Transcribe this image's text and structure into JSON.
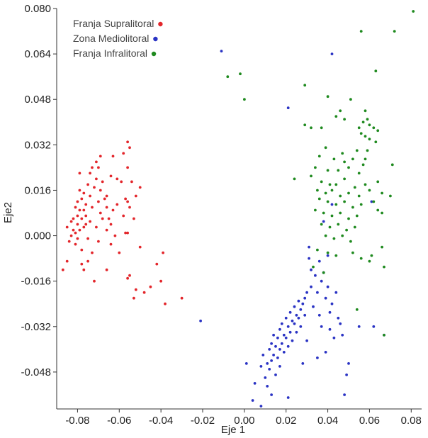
{
  "chart_data": {
    "type": "scatter",
    "title": "",
    "xlabel": "Eje 1",
    "ylabel": "Eje2",
    "xlim": [
      -0.09,
      0.085
    ],
    "ylim": [
      -0.061,
      0.08
    ],
    "xticks": [
      -0.08,
      -0.06,
      -0.04,
      -0.02,
      0.0,
      0.02,
      0.04,
      0.06,
      0.08
    ],
    "xtick_labels": [
      "-0.08",
      "-0.06",
      "-0.04",
      "-0.02",
      "0.00",
      "0.02",
      "0.04",
      "0.06",
      "0.08"
    ],
    "yticks": [
      0.08,
      0.064,
      0.048,
      0.032,
      0.016,
      0.0,
      -0.016,
      -0.032,
      -0.048
    ],
    "ytick_labels": [
      "0.080",
      "0.064",
      "0.048",
      "0.032",
      "0.016",
      "0.000",
      "-0.016",
      "-0.032",
      "-0.048"
    ],
    "grid": false,
    "legend_position": "top-left",
    "series": [
      {
        "name": "Franja Supralitoral",
        "color": "#e3262b",
        "points": [
          [
            -0.087,
            -0.012
          ],
          [
            -0.085,
            -0.009
          ],
          [
            -0.085,
            0.003
          ],
          [
            -0.084,
            -0.002
          ],
          [
            -0.083,
            0.0
          ],
          [
            -0.083,
            0.005
          ],
          [
            -0.082,
            0.002
          ],
          [
            -0.082,
            0.006
          ],
          [
            -0.081,
            0.01
          ],
          [
            -0.081,
            0.001
          ],
          [
            -0.081,
            -0.003
          ],
          [
            -0.08,
            0.007
          ],
          [
            -0.08,
            0.012
          ],
          [
            -0.08,
            0.004
          ],
          [
            -0.08,
            -0.001
          ],
          [
            -0.079,
            0.016
          ],
          [
            -0.079,
            0.022
          ],
          [
            -0.079,
            0.009
          ],
          [
            -0.079,
            0.002
          ],
          [
            -0.078,
            0.013
          ],
          [
            -0.078,
            0.006
          ],
          [
            -0.078,
            -0.005
          ],
          [
            -0.078,
            -0.01
          ],
          [
            -0.077,
            0.009
          ],
          [
            -0.077,
            0.015
          ],
          [
            -0.077,
            0.003
          ],
          [
            -0.077,
            -0.012
          ],
          [
            -0.076,
            0.011
          ],
          [
            -0.076,
            0.007
          ],
          [
            -0.076,
            0.004
          ],
          [
            -0.075,
            0.018
          ],
          [
            -0.075,
            -0.001
          ],
          [
            -0.075,
            -0.009
          ],
          [
            -0.074,
            0.022
          ],
          [
            -0.074,
            0.014
          ],
          [
            -0.074,
            0.005
          ],
          [
            -0.073,
            0.024
          ],
          [
            -0.073,
            0.01
          ],
          [
            -0.073,
            -0.006
          ],
          [
            -0.072,
            -0.016
          ],
          [
            -0.072,
            0.017
          ],
          [
            -0.071,
            0.02
          ],
          [
            -0.071,
            0.026
          ],
          [
            -0.071,
            0.003
          ],
          [
            -0.07,
            0.024
          ],
          [
            -0.07,
            0.012
          ],
          [
            -0.07,
            -0.002
          ],
          [
            -0.069,
            0.028
          ],
          [
            -0.069,
            0.016
          ],
          [
            -0.069,
            0.008
          ],
          [
            -0.068,
            0.019
          ],
          [
            -0.068,
            0.006
          ],
          [
            -0.067,
            0.013
          ],
          [
            -0.066,
            0.01
          ],
          [
            -0.066,
            0.002
          ],
          [
            -0.066,
            -0.012
          ],
          [
            -0.066,
            0.014
          ],
          [
            -0.065,
            0.006
          ],
          [
            -0.064,
            0.021
          ],
          [
            -0.064,
            0.004
          ],
          [
            -0.064,
            -0.003
          ],
          [
            -0.063,
            0.028
          ],
          [
            -0.063,
            0.009
          ],
          [
            -0.062,
            0.0
          ],
          [
            -0.061,
            0.02
          ],
          [
            -0.061,
            0.011
          ],
          [
            -0.06,
            -0.006
          ],
          [
            -0.059,
            0.019
          ],
          [
            -0.058,
            0.029
          ],
          [
            -0.058,
            0.007
          ],
          [
            -0.057,
            0.013
          ],
          [
            -0.057,
            0.001
          ],
          [
            -0.056,
            0.033
          ],
          [
            -0.056,
            0.024
          ],
          [
            -0.056,
            0.012
          ],
          [
            -0.056,
            0.001
          ],
          [
            -0.056,
            -0.015
          ],
          [
            -0.055,
            0.031
          ],
          [
            -0.055,
            0.01
          ],
          [
            -0.055,
            -0.014
          ],
          [
            -0.054,
            0.019
          ],
          [
            -0.053,
            0.006
          ],
          [
            -0.053,
            -0.022
          ],
          [
            -0.052,
            0.014
          ],
          [
            -0.052,
            -0.019
          ],
          [
            -0.05,
            0.017
          ],
          [
            -0.05,
            -0.004
          ],
          [
            -0.048,
            -0.02
          ],
          [
            -0.045,
            -0.018
          ],
          [
            -0.042,
            -0.01
          ],
          [
            -0.04,
            -0.016
          ],
          [
            -0.039,
            -0.006
          ],
          [
            -0.038,
            -0.024
          ],
          [
            -0.03,
            -0.022
          ]
        ]
      },
      {
        "name": "Zona Mediolitoral",
        "color": "#2a33c4",
        "points": [
          [
            -0.011,
            0.065
          ],
          [
            -0.021,
            -0.03
          ],
          [
            0.042,
            0.064
          ],
          [
            0.021,
            0.045
          ],
          [
            0.001,
            -0.045
          ],
          [
            0.005,
            -0.052
          ],
          [
            0.004,
            -0.058
          ],
          [
            0.008,
            -0.046
          ],
          [
            0.008,
            -0.06
          ],
          [
            0.009,
            -0.042
          ],
          [
            0.01,
            -0.05
          ],
          [
            0.011,
            -0.053
          ],
          [
            0.011,
            -0.045
          ],
          [
            0.012,
            -0.04
          ],
          [
            0.012,
            -0.047
          ],
          [
            0.013,
            -0.038
          ],
          [
            0.013,
            -0.044
          ],
          [
            0.013,
            -0.056
          ],
          [
            0.014,
            -0.035
          ],
          [
            0.014,
            -0.042
          ],
          [
            0.015,
            -0.039
          ],
          [
            0.015,
            -0.049
          ],
          [
            0.016,
            -0.036
          ],
          [
            0.016,
            -0.043
          ],
          [
            0.017,
            -0.033
          ],
          [
            0.017,
            -0.04
          ],
          [
            0.017,
            -0.046
          ],
          [
            0.018,
            -0.031
          ],
          [
            0.018,
            -0.038
          ],
          [
            0.019,
            -0.035
          ],
          [
            0.019,
            -0.041
          ],
          [
            0.02,
            -0.029
          ],
          [
            0.02,
            -0.036
          ],
          [
            0.021,
            -0.032
          ],
          [
            0.021,
            -0.039
          ],
          [
            0.021,
            -0.057
          ],
          [
            0.022,
            -0.027
          ],
          [
            0.022,
            -0.034
          ],
          [
            0.023,
            -0.03
          ],
          [
            0.023,
            -0.037
          ],
          [
            0.024,
            -0.025
          ],
          [
            0.024,
            -0.031
          ],
          [
            0.025,
            -0.028
          ],
          [
            0.025,
            -0.034
          ],
          [
            0.026,
            -0.023
          ],
          [
            0.026,
            -0.029
          ],
          [
            0.027,
            -0.026
          ],
          [
            0.027,
            -0.032
          ],
          [
            0.028,
            -0.024
          ],
          [
            0.028,
            -0.045
          ],
          [
            0.029,
            -0.022
          ],
          [
            0.029,
            -0.028
          ],
          [
            0.03,
            -0.02
          ],
          [
            0.03,
            -0.037
          ],
          [
            0.031,
            -0.004
          ],
          [
            0.031,
            -0.008
          ],
          [
            0.032,
            -0.012
          ],
          [
            0.032,
            -0.018
          ],
          [
            0.033,
            -0.025
          ],
          [
            0.034,
            -0.014
          ],
          [
            0.035,
            -0.02
          ],
          [
            0.035,
            -0.043
          ],
          [
            0.036,
            -0.009
          ],
          [
            0.036,
            -0.028
          ],
          [
            0.037,
            -0.016
          ],
          [
            0.037,
            -0.032
          ],
          [
            0.038,
            0.005
          ],
          [
            0.038,
            -0.013
          ],
          [
            0.039,
            -0.022
          ],
          [
            0.039,
            -0.041
          ],
          [
            0.04,
            -0.007
          ],
          [
            0.04,
            -0.018
          ],
          [
            0.041,
            -0.027
          ],
          [
            0.041,
            -0.033
          ],
          [
            0.042,
            0.011
          ],
          [
            0.042,
            -0.024
          ],
          [
            0.043,
            -0.036
          ],
          [
            0.044,
            -0.02
          ],
          [
            0.045,
            -0.029
          ],
          [
            0.046,
            -0.031
          ],
          [
            0.047,
            -0.035
          ],
          [
            0.048,
            -0.056
          ],
          [
            0.049,
            -0.049
          ],
          [
            0.05,
            -0.045
          ],
          [
            0.055,
            -0.032
          ],
          [
            0.061,
            0.012
          ],
          [
            0.062,
            -0.032
          ],
          [
            0.067,
            -0.035
          ]
        ]
      },
      {
        "name": "Franja Infralitoral",
        "color": "#1f8a1f",
        "points": [
          [
            0.081,
            0.079
          ],
          [
            0.056,
            0.072
          ],
          [
            0.072,
            0.072
          ],
          [
            0.063,
            0.058
          ],
          [
            -0.002,
            0.057
          ],
          [
            -0.008,
            0.056
          ],
          [
            0.029,
            0.053
          ],
          [
            0.0,
            0.048
          ],
          [
            0.04,
            0.049
          ],
          [
            0.051,
            0.048
          ],
          [
            0.046,
            0.044
          ],
          [
            0.058,
            0.044
          ],
          [
            0.044,
            0.042
          ],
          [
            0.048,
            0.041
          ],
          [
            0.057,
            0.04
          ],
          [
            0.059,
            0.041
          ],
          [
            0.06,
            0.039
          ],
          [
            0.062,
            0.038
          ],
          [
            0.029,
            0.039
          ],
          [
            0.055,
            0.038
          ],
          [
            0.064,
            0.037
          ],
          [
            0.032,
            0.038
          ],
          [
            0.037,
            0.038
          ],
          [
            0.056,
            0.036
          ],
          [
            0.058,
            0.035
          ],
          [
            0.06,
            0.034
          ],
          [
            0.063,
            0.033
          ],
          [
            0.039,
            0.031
          ],
          [
            0.054,
            0.03
          ],
          [
            0.047,
            0.029
          ],
          [
            0.059,
            0.03
          ],
          [
            0.036,
            0.028
          ],
          [
            0.043,
            0.027
          ],
          [
            0.048,
            0.026
          ],
          [
            0.052,
            0.027
          ],
          [
            0.058,
            0.027
          ],
          [
            0.071,
            0.025
          ],
          [
            0.034,
            0.024
          ],
          [
            0.04,
            0.023
          ],
          [
            0.045,
            0.023
          ],
          [
            0.05,
            0.024
          ],
          [
            0.055,
            0.022
          ],
          [
            0.057,
            0.025
          ],
          [
            0.024,
            0.02
          ],
          [
            0.032,
            0.021
          ],
          [
            0.037,
            0.019
          ],
          [
            0.041,
            0.018
          ],
          [
            0.044,
            0.018
          ],
          [
            0.048,
            0.02
          ],
          [
            0.053,
            0.017
          ],
          [
            0.058,
            0.018
          ],
          [
            0.064,
            0.019
          ],
          [
            0.035,
            0.016
          ],
          [
            0.039,
            0.015
          ],
          [
            0.042,
            0.016
          ],
          [
            0.046,
            0.014
          ],
          [
            0.05,
            0.015
          ],
          [
            0.055,
            0.014
          ],
          [
            0.06,
            0.016
          ],
          [
            0.066,
            0.015
          ],
          [
            0.07,
            0.014
          ],
          [
            0.036,
            0.013
          ],
          [
            0.04,
            0.012
          ],
          [
            0.044,
            0.011
          ],
          [
            0.048,
            0.012
          ],
          [
            0.052,
            0.01
          ],
          [
            0.056,
            0.011
          ],
          [
            0.062,
            0.012
          ],
          [
            0.064,
            0.009
          ],
          [
            0.034,
            0.009
          ],
          [
            0.038,
            0.008
          ],
          [
            0.042,
            0.007
          ],
          [
            0.046,
            0.008
          ],
          [
            0.05,
            0.006
          ],
          [
            0.054,
            0.007
          ],
          [
            0.066,
            0.008
          ],
          [
            0.037,
            0.004
          ],
          [
            0.041,
            0.003
          ],
          [
            0.045,
            0.004
          ],
          [
            0.049,
            0.002
          ],
          [
            0.053,
            0.003
          ],
          [
            0.039,
            0.0
          ],
          [
            0.043,
            -0.001
          ],
          [
            0.047,
            0.0
          ],
          [
            0.051,
            -0.002
          ],
          [
            0.035,
            -0.005
          ],
          [
            0.04,
            -0.006
          ],
          [
            0.044,
            -0.007
          ],
          [
            0.052,
            -0.006
          ],
          [
            0.056,
            -0.008
          ],
          [
            0.06,
            -0.009
          ],
          [
            0.066,
            -0.004
          ],
          [
            0.033,
            -0.011
          ],
          [
            0.038,
            -0.013
          ],
          [
            0.054,
            -0.026
          ],
          [
            0.067,
            -0.011
          ],
          [
            0.061,
            -0.007
          ],
          [
            0.067,
            -0.035
          ]
        ]
      }
    ]
  }
}
